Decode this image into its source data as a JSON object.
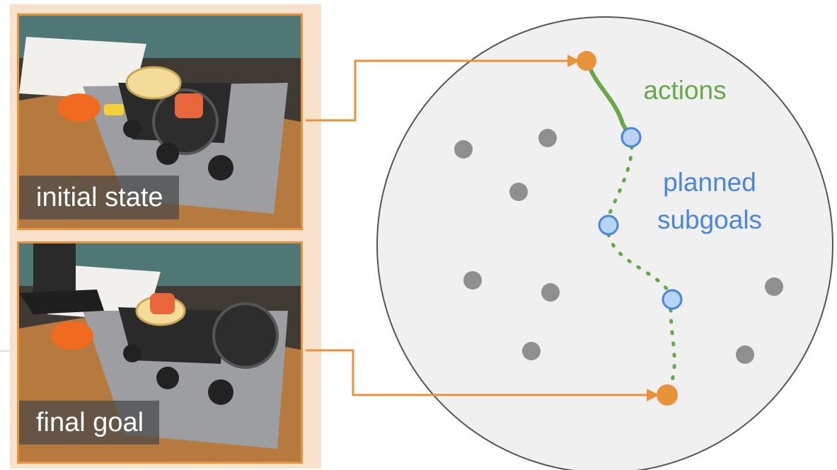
{
  "images": {
    "initial": {
      "caption": "initial state"
    },
    "final": {
      "caption": "final goal"
    }
  },
  "diagram": {
    "actions_label": "actions",
    "subgoals_label_line1": "planned",
    "subgoals_label_line2": "subgoals"
  },
  "colors": {
    "orange": "#e8933a",
    "green": "#67a84a",
    "blue": "#4a86e0",
    "gray_dot": "#8f8f8f",
    "circle_fill": "#f0f0f0",
    "panel_bg": "#f8e2cd"
  }
}
